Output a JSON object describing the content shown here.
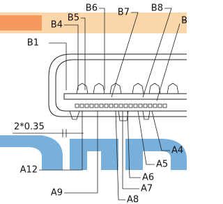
{
  "callouts": [
    "B1",
    "B4",
    "B5",
    "B6",
    "B7",
    "B8",
    "B",
    "A12",
    "A9",
    "A8",
    "A7",
    "A6",
    "A5",
    "A4"
  ],
  "dimension": "2*0.35"
}
